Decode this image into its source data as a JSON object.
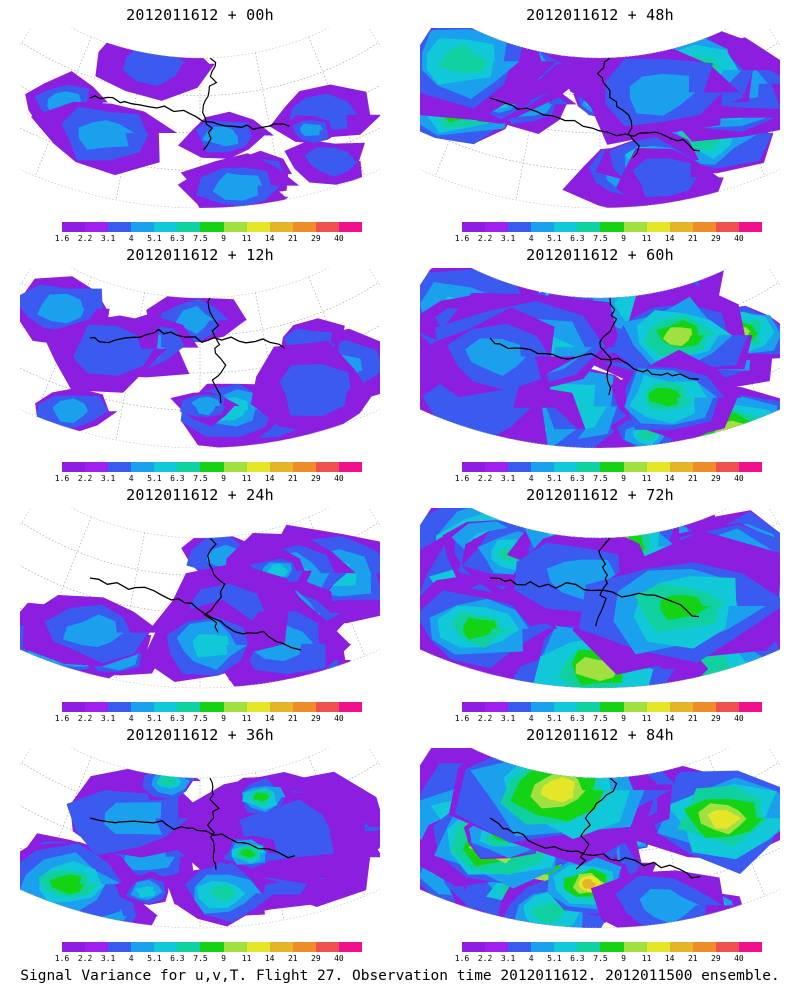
{
  "colorscale": {
    "labels": [
      "1.6",
      "2.2",
      "3.1",
      "4",
      "5.1",
      "6.3",
      "7.5",
      "9",
      "11",
      "14",
      "21",
      "29",
      "40"
    ],
    "colors": [
      "#8c1ee0",
      "#a020f0",
      "#3a5af0",
      "#1aa0ec",
      "#10c8d8",
      "#10d0a0",
      "#14d214",
      "#a0e040",
      "#e6e628",
      "#e6b428",
      "#f08c28",
      "#f05050",
      "#f0108c"
    ]
  },
  "panels": [
    {
      "title": "2012011612 + 00h",
      "level": 0.1
    },
    {
      "title": "2012011612 + 12h",
      "level": 0.22
    },
    {
      "title": "2012011612 + 24h",
      "level": 0.38
    },
    {
      "title": "2012011612 + 36h",
      "level": 0.55
    },
    {
      "title": "2012011612 + 48h",
      "level": 0.62
    },
    {
      "title": "2012011612 + 60h",
      "level": 0.72
    },
    {
      "title": "2012011612 + 72h",
      "level": 0.82
    },
    {
      "title": "2012011612 + 84h",
      "level": 0.92
    }
  ],
  "caption": "Signal Variance for u,v,T. Flight 27. Observation time 2012011612. 2012011500 ensemble."
}
